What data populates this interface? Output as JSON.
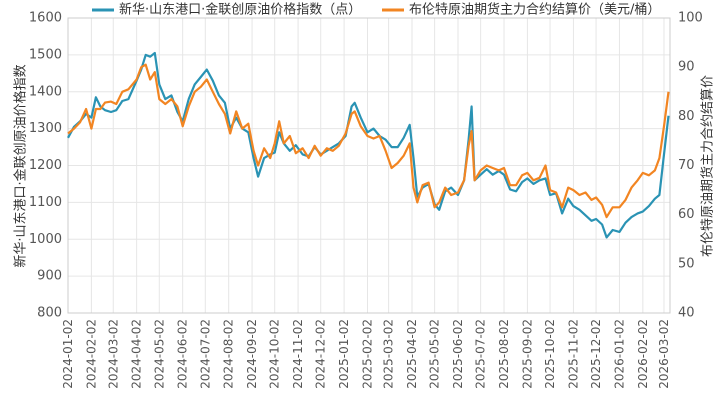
{
  "chart_data": {
    "type": "line",
    "y_left_label": "新华·山东港口·金联创原油价格指数",
    "y_right_label": "布伦特原油期货主力合约结算价",
    "ylim_left": [
      800,
      1600
    ],
    "ylim_right": [
      40,
      100
    ],
    "yticks_left": [
      "800",
      "900",
      "1000",
      "1100",
      "1200",
      "1300",
      "1400",
      "1500",
      "1600"
    ],
    "yticks_right": [
      "40",
      "50",
      "60",
      "70",
      "80",
      "90",
      "100"
    ],
    "xticks": [
      "2024-01-02",
      "2024-02-02",
      "2024-03-02",
      "2024-04-02",
      "2024-05-02",
      "2024-06-02",
      "2024-07-02",
      "2024-08-02",
      "2024-09-02",
      "2024-10-02",
      "2024-11-02",
      "2024-12-02",
      "2025-01-02",
      "2025-02-02",
      "2025-03-02",
      "2025-04-02",
      "2025-05-02",
      "2025-06-02",
      "2025-07-02",
      "2025-08-02",
      "2025-09-02",
      "2025-10-02",
      "2025-11-02",
      "2025-12-02",
      "2026-01-02",
      "2026-02-02",
      "2026-03-02"
    ],
    "legend_position": "top",
    "grid": true,
    "series": [
      {
        "name": "新华·山东港口·金联创原油价格指数（点）",
        "axis": "left",
        "color": "#2a93b4",
        "points": [
          [
            "2024-01-02",
            1275
          ],
          [
            "2024-01-10",
            1305
          ],
          [
            "2024-01-18",
            1320
          ],
          [
            "2024-01-26",
            1340
          ],
          [
            "2024-02-02",
            1330
          ],
          [
            "2024-02-08",
            1385
          ],
          [
            "2024-02-14",
            1360
          ],
          [
            "2024-02-20",
            1350
          ],
          [
            "2024-02-28",
            1345
          ],
          [
            "2024-03-06",
            1350
          ],
          [
            "2024-03-14",
            1375
          ],
          [
            "2024-03-22",
            1380
          ],
          [
            "2024-04-02",
            1430
          ],
          [
            "2024-04-08",
            1460
          ],
          [
            "2024-04-14",
            1500
          ],
          [
            "2024-04-20",
            1495
          ],
          [
            "2024-04-26",
            1505
          ],
          [
            "2024-05-02",
            1420
          ],
          [
            "2024-05-10",
            1380
          ],
          [
            "2024-05-18",
            1390
          ],
          [
            "2024-05-26",
            1345
          ],
          [
            "2024-06-02",
            1320
          ],
          [
            "2024-06-10",
            1380
          ],
          [
            "2024-06-18",
            1420
          ],
          [
            "2024-06-26",
            1440
          ],
          [
            "2024-07-04",
            1460
          ],
          [
            "2024-07-12",
            1430
          ],
          [
            "2024-07-20",
            1390
          ],
          [
            "2024-07-28",
            1370
          ],
          [
            "2024-08-04",
            1300
          ],
          [
            "2024-08-12",
            1330
          ],
          [
            "2024-08-20",
            1300
          ],
          [
            "2024-08-28",
            1290
          ],
          [
            "2024-09-04",
            1220
          ],
          [
            "2024-09-10",
            1170
          ],
          [
            "2024-09-18",
            1220
          ],
          [
            "2024-09-26",
            1230
          ],
          [
            "2024-10-02",
            1235
          ],
          [
            "2024-10-08",
            1290
          ],
          [
            "2024-10-14",
            1260
          ],
          [
            "2024-10-22",
            1240
          ],
          [
            "2024-10-30",
            1255
          ],
          [
            "2024-11-08",
            1230
          ],
          [
            "2024-11-16",
            1225
          ],
          [
            "2024-11-24",
            1250
          ],
          [
            "2024-12-02",
            1230
          ],
          [
            "2024-12-10",
            1240
          ],
          [
            "2024-12-18",
            1250
          ],
          [
            "2024-12-26",
            1260
          ],
          [
            "2025-01-04",
            1280
          ],
          [
            "2025-01-12",
            1360
          ],
          [
            "2025-01-16",
            1370
          ],
          [
            "2025-01-24",
            1330
          ],
          [
            "2025-02-02",
            1290
          ],
          [
            "2025-02-10",
            1300
          ],
          [
            "2025-02-18",
            1280
          ],
          [
            "2025-02-26",
            1270
          ],
          [
            "2025-03-06",
            1250
          ],
          [
            "2025-03-14",
            1250
          ],
          [
            "2025-03-22",
            1275
          ],
          [
            "2025-03-30",
            1310
          ],
          [
            "2025-04-04",
            1220
          ],
          [
            "2025-04-09",
            1115
          ],
          [
            "2025-04-16",
            1140
          ],
          [
            "2025-04-24",
            1150
          ],
          [
            "2025-05-02",
            1095
          ],
          [
            "2025-05-08",
            1080
          ],
          [
            "2025-05-16",
            1130
          ],
          [
            "2025-05-24",
            1140
          ],
          [
            "2025-06-02",
            1120
          ],
          [
            "2025-06-10",
            1160
          ],
          [
            "2025-06-16",
            1270
          ],
          [
            "2025-06-20",
            1360
          ],
          [
            "2025-06-24",
            1160
          ],
          [
            "2025-07-02",
            1175
          ],
          [
            "2025-07-10",
            1190
          ],
          [
            "2025-07-18",
            1175
          ],
          [
            "2025-07-26",
            1185
          ],
          [
            "2025-08-02",
            1175
          ],
          [
            "2025-08-10",
            1135
          ],
          [
            "2025-08-18",
            1130
          ],
          [
            "2025-08-26",
            1155
          ],
          [
            "2025-09-02",
            1165
          ],
          [
            "2025-09-10",
            1150
          ],
          [
            "2025-09-18",
            1160
          ],
          [
            "2025-09-26",
            1165
          ],
          [
            "2025-10-02",
            1120
          ],
          [
            "2025-10-10",
            1125
          ],
          [
            "2025-10-18",
            1070
          ],
          [
            "2025-10-26",
            1110
          ],
          [
            "2025-11-02",
            1090
          ],
          [
            "2025-11-10",
            1080
          ],
          [
            "2025-11-18",
            1065
          ],
          [
            "2025-11-26",
            1050
          ],
          [
            "2025-12-02",
            1055
          ],
          [
            "2025-12-10",
            1040
          ],
          [
            "2025-12-16",
            1005
          ],
          [
            "2025-12-24",
            1025
          ],
          [
            "2026-01-02",
            1020
          ],
          [
            "2026-01-10",
            1045
          ],
          [
            "2026-01-18",
            1060
          ],
          [
            "2026-01-26",
            1070
          ],
          [
            "2026-02-02",
            1075
          ],
          [
            "2026-02-10",
            1090
          ],
          [
            "2026-02-18",
            1110
          ],
          [
            "2026-02-24",
            1120
          ],
          [
            "2026-03-02",
            1230
          ],
          [
            "2026-03-08",
            1335
          ]
        ]
      },
      {
        "name": "布伦特原油期货主力合约结算价（美元/桶）",
        "axis": "right",
        "color": "#f28522",
        "points": [
          [
            "2024-01-02",
            76.5
          ],
          [
            "2024-01-10",
            77.5
          ],
          [
            "2024-01-18",
            78.8
          ],
          [
            "2024-01-26",
            81.5
          ],
          [
            "2024-02-02",
            77.5
          ],
          [
            "2024-02-08",
            81.5
          ],
          [
            "2024-02-14",
            81.5
          ],
          [
            "2024-02-20",
            82.8
          ],
          [
            "2024-02-28",
            83.0
          ],
          [
            "2024-03-06",
            82.5
          ],
          [
            "2024-03-14",
            85.0
          ],
          [
            "2024-03-22",
            85.5
          ],
          [
            "2024-04-02",
            87.5
          ],
          [
            "2024-04-08",
            90.0
          ],
          [
            "2024-04-14",
            90.5
          ],
          [
            "2024-04-20",
            87.5
          ],
          [
            "2024-04-26",
            89.0
          ],
          [
            "2024-05-02",
            83.5
          ],
          [
            "2024-05-10",
            82.5
          ],
          [
            "2024-05-18",
            83.5
          ],
          [
            "2024-05-26",
            82.0
          ],
          [
            "2024-06-02",
            78.0
          ],
          [
            "2024-06-10",
            82.0
          ],
          [
            "2024-06-18",
            85.0
          ],
          [
            "2024-06-26",
            86.0
          ],
          [
            "2024-07-04",
            87.5
          ],
          [
            "2024-07-12",
            85.0
          ],
          [
            "2024-07-20",
            82.5
          ],
          [
            "2024-07-28",
            80.5
          ],
          [
            "2024-08-04",
            76.5
          ],
          [
            "2024-08-12",
            81.0
          ],
          [
            "2024-08-20",
            77.5
          ],
          [
            "2024-08-28",
            78.5
          ],
          [
            "2024-09-04",
            73.0
          ],
          [
            "2024-09-10",
            70.0
          ],
          [
            "2024-09-18",
            73.5
          ],
          [
            "2024-09-26",
            71.5
          ],
          [
            "2024-10-02",
            74.5
          ],
          [
            "2024-10-08",
            79.0
          ],
          [
            "2024-10-14",
            74.5
          ],
          [
            "2024-10-22",
            76.0
          ],
          [
            "2024-10-30",
            72.5
          ],
          [
            "2024-11-08",
            73.5
          ],
          [
            "2024-11-16",
            71.5
          ],
          [
            "2024-11-24",
            74.0
          ],
          [
            "2024-12-02",
            72.0
          ],
          [
            "2024-12-10",
            73.5
          ],
          [
            "2024-12-18",
            73.0
          ],
          [
            "2024-12-26",
            74.0
          ],
          [
            "2025-01-04",
            76.5
          ],
          [
            "2025-01-12",
            80.5
          ],
          [
            "2025-01-16",
            81.0
          ],
          [
            "2025-01-24",
            78.0
          ],
          [
            "2025-02-02",
            76.0
          ],
          [
            "2025-02-10",
            75.5
          ],
          [
            "2025-02-18",
            76.0
          ],
          [
            "2025-02-26",
            73.0
          ],
          [
            "2025-03-06",
            69.5
          ],
          [
            "2025-03-14",
            70.5
          ],
          [
            "2025-03-22",
            72.0
          ],
          [
            "2025-03-30",
            74.5
          ],
          [
            "2025-04-04",
            65.5
          ],
          [
            "2025-04-09",
            62.5
          ],
          [
            "2025-04-16",
            66.0
          ],
          [
            "2025-04-24",
            66.5
          ],
          [
            "2025-05-02",
            61.5
          ],
          [
            "2025-05-08",
            62.5
          ],
          [
            "2025-05-16",
            65.5
          ],
          [
            "2025-05-24",
            64.0
          ],
          [
            "2025-06-02",
            64.5
          ],
          [
            "2025-06-10",
            67.0
          ],
          [
            "2025-06-16",
            74.0
          ],
          [
            "2025-06-20",
            77.0
          ],
          [
            "2025-06-24",
            67.0
          ],
          [
            "2025-07-02",
            69.0
          ],
          [
            "2025-07-10",
            70.0
          ],
          [
            "2025-07-18",
            69.5
          ],
          [
            "2025-07-26",
            69.0
          ],
          [
            "2025-08-02",
            69.5
          ],
          [
            "2025-08-10",
            66.0
          ],
          [
            "2025-08-18",
            66.0
          ],
          [
            "2025-08-26",
            68.0
          ],
          [
            "2025-09-02",
            68.5
          ],
          [
            "2025-09-10",
            67.0
          ],
          [
            "2025-09-18",
            67.5
          ],
          [
            "2025-09-26",
            70.0
          ],
          [
            "2025-10-02",
            65.0
          ],
          [
            "2025-10-10",
            64.5
          ],
          [
            "2025-10-18",
            61.5
          ],
          [
            "2025-10-26",
            65.5
          ],
          [
            "2025-11-02",
            65.0
          ],
          [
            "2025-11-10",
            64.0
          ],
          [
            "2025-11-18",
            64.5
          ],
          [
            "2025-11-26",
            63.0
          ],
          [
            "2025-12-02",
            63.5
          ],
          [
            "2025-12-10",
            62.0
          ],
          [
            "2025-12-16",
            59.5
          ],
          [
            "2025-12-24",
            61.5
          ],
          [
            "2026-01-02",
            61.5
          ],
          [
            "2026-01-10",
            63.0
          ],
          [
            "2026-01-18",
            65.5
          ],
          [
            "2026-01-26",
            67.0
          ],
          [
            "2026-02-02",
            68.5
          ],
          [
            "2026-02-10",
            68.0
          ],
          [
            "2026-02-18",
            69.0
          ],
          [
            "2026-02-24",
            71.5
          ],
          [
            "2026-03-02",
            78.0
          ],
          [
            "2026-03-08",
            85.0
          ]
        ]
      }
    ]
  }
}
